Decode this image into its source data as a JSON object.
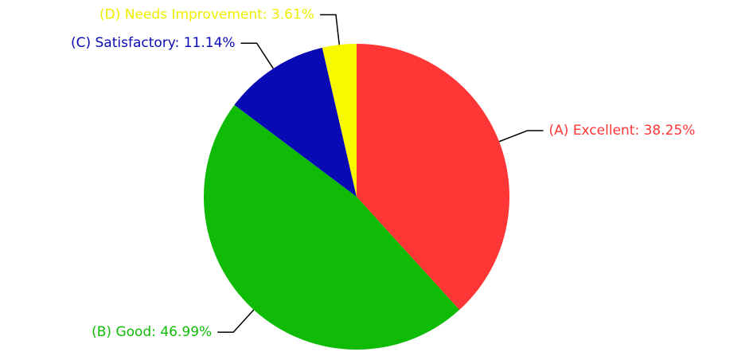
{
  "chart_data": {
    "type": "pie",
    "values": [
      38.25,
      46.99,
      11.14,
      3.61
    ],
    "value_labels": [
      "(A) Excellent: 38.25%",
      "(B) Good: 46.99%",
      "(C) Satisfactory: 11.14%",
      "(D) Needs Improvement: 3.61%"
    ],
    "colors": [
      "#ff3636",
      "#10bb08",
      "#0a0ab4",
      "#f8f800"
    ],
    "label_colors": [
      "#ff3636",
      "#10bb08",
      "#0a0ab4",
      "#eeee00"
    ]
  }
}
